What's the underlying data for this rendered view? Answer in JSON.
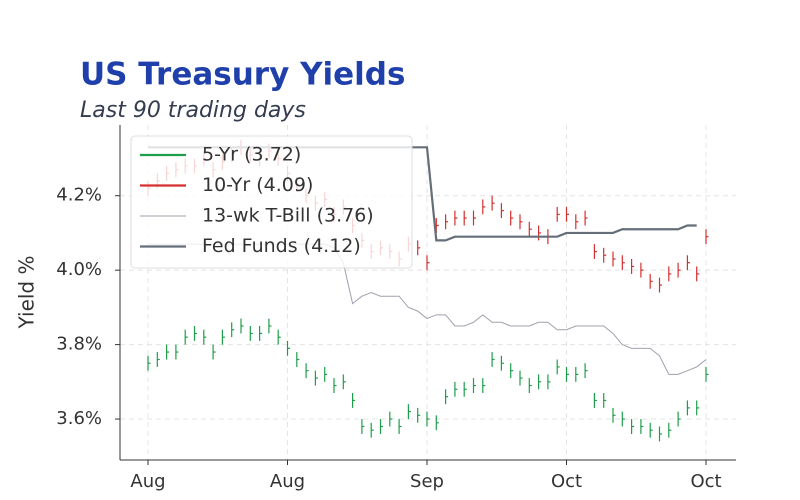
{
  "chart_data": {
    "type": "ohlc_line",
    "title": "US Treasury Yields",
    "subtitle": "Last 90 trading days",
    "ylabel": "Yield %",
    "categories": [
      "Aug",
      null,
      null,
      null,
      null,
      null,
      null,
      null,
      null,
      null,
      null,
      null,
      null,
      null,
      null,
      "Aug",
      null,
      null,
      null,
      null,
      null,
      null,
      null,
      null,
      null,
      null,
      null,
      null,
      null,
      null,
      "Sep",
      null,
      null,
      null,
      null,
      null,
      null,
      null,
      null,
      null,
      null,
      null,
      null,
      null,
      null,
      "Oct",
      null,
      null,
      null,
      null,
      null,
      null,
      null,
      null,
      null,
      null,
      null,
      null,
      null,
      null,
      "Oct"
    ],
    "ylim": [
      3.49,
      4.39
    ],
    "yticks": [
      {
        "value": 3.6,
        "label": "3.6%"
      },
      {
        "value": 3.8,
        "label": "3.8%"
      },
      {
        "value": 4.0,
        "label": "4.0%"
      },
      {
        "value": 4.2,
        "label": "4.2%"
      }
    ],
    "grid": true,
    "legend": "upper left",
    "series": [
      {
        "name": "5-Yr (3.72)",
        "kind": "ohlc",
        "color": "#1e9e4a",
        "values": [
          3.75,
          3.76,
          3.78,
          3.78,
          3.82,
          3.83,
          3.82,
          3.78,
          3.82,
          3.84,
          3.85,
          3.83,
          3.83,
          3.85,
          3.82,
          3.79,
          3.76,
          3.73,
          3.71,
          3.72,
          3.69,
          3.7,
          3.65,
          3.58,
          3.57,
          3.58,
          3.6,
          3.58,
          3.62,
          3.61,
          3.6,
          3.59,
          3.66,
          3.68,
          3.68,
          3.69,
          3.69,
          3.76,
          3.75,
          3.73,
          3.71,
          3.69,
          3.7,
          3.7,
          3.74,
          3.72,
          3.72,
          3.73,
          3.65,
          3.65,
          3.61,
          3.6,
          3.58,
          3.58,
          3.57,
          3.56,
          3.57,
          3.6,
          3.63,
          3.63,
          3.72
        ],
        "low": [
          3.73,
          3.74,
          3.76,
          3.76,
          3.8,
          3.81,
          3.8,
          3.76,
          3.8,
          3.82,
          3.83,
          3.81,
          3.81,
          3.83,
          3.8,
          3.77,
          3.74,
          3.71,
          3.69,
          3.7,
          3.67,
          3.68,
          3.63,
          3.56,
          3.55,
          3.56,
          3.58,
          3.56,
          3.6,
          3.59,
          3.58,
          3.57,
          3.64,
          3.66,
          3.66,
          3.67,
          3.67,
          3.74,
          3.73,
          3.71,
          3.69,
          3.67,
          3.68,
          3.68,
          3.72,
          3.7,
          3.7,
          3.71,
          3.63,
          3.63,
          3.59,
          3.58,
          3.56,
          3.56,
          3.55,
          3.54,
          3.55,
          3.58,
          3.61,
          3.61,
          3.7
        ],
        "high": [
          3.77,
          3.78,
          3.8,
          3.8,
          3.84,
          3.85,
          3.84,
          3.8,
          3.84,
          3.86,
          3.87,
          3.85,
          3.85,
          3.87,
          3.84,
          3.81,
          3.78,
          3.75,
          3.73,
          3.74,
          3.71,
          3.72,
          3.67,
          3.6,
          3.59,
          3.6,
          3.62,
          3.6,
          3.64,
          3.63,
          3.62,
          3.61,
          3.68,
          3.7,
          3.7,
          3.71,
          3.71,
          3.78,
          3.77,
          3.75,
          3.73,
          3.71,
          3.72,
          3.72,
          3.76,
          3.74,
          3.74,
          3.75,
          3.67,
          3.67,
          3.63,
          3.62,
          3.6,
          3.6,
          3.59,
          3.58,
          3.59,
          3.62,
          3.65,
          3.65,
          3.74
        ]
      },
      {
        "name": "10-Yr (4.09)",
        "kind": "ohlc",
        "color": "#d62f2f",
        "values": [
          4.22,
          4.24,
          4.26,
          4.27,
          4.28,
          4.28,
          4.3,
          4.27,
          4.29,
          4.31,
          4.33,
          4.31,
          4.3,
          4.32,
          4.3,
          4.26,
          4.23,
          4.2,
          4.18,
          4.19,
          4.15,
          4.17,
          4.12,
          4.08,
          4.05,
          4.06,
          4.05,
          4.03,
          4.07,
          4.06,
          4.02,
          4.12,
          4.13,
          4.14,
          4.14,
          4.14,
          4.17,
          4.18,
          4.16,
          4.14,
          4.13,
          4.11,
          4.1,
          4.09,
          4.15,
          4.15,
          4.13,
          4.14,
          4.05,
          4.04,
          4.03,
          4.02,
          4.01,
          4.0,
          3.97,
          3.96,
          3.99,
          4.0,
          4.02,
          3.99,
          4.09
        ],
        "low": [
          4.2,
          4.22,
          4.24,
          4.25,
          4.26,
          4.26,
          4.28,
          4.25,
          4.27,
          4.29,
          4.31,
          4.29,
          4.28,
          4.3,
          4.28,
          4.24,
          4.21,
          4.18,
          4.16,
          4.17,
          4.13,
          4.15,
          4.1,
          4.06,
          4.03,
          4.04,
          4.03,
          4.01,
          4.05,
          4.04,
          4.0,
          4.1,
          4.11,
          4.12,
          4.12,
          4.12,
          4.15,
          4.16,
          4.14,
          4.12,
          4.11,
          4.09,
          4.08,
          4.07,
          4.13,
          4.13,
          4.11,
          4.12,
          4.03,
          4.02,
          4.01,
          4.0,
          3.99,
          3.98,
          3.95,
          3.94,
          3.97,
          3.98,
          4.0,
          3.97,
          4.07
        ],
        "high": [
          4.24,
          4.26,
          4.28,
          4.29,
          4.3,
          4.3,
          4.32,
          4.29,
          4.31,
          4.33,
          4.35,
          4.33,
          4.32,
          4.34,
          4.32,
          4.28,
          4.25,
          4.22,
          4.2,
          4.21,
          4.17,
          4.19,
          4.14,
          4.1,
          4.07,
          4.08,
          4.07,
          4.05,
          4.09,
          4.08,
          4.04,
          4.14,
          4.15,
          4.16,
          4.16,
          4.16,
          4.19,
          4.2,
          4.18,
          4.16,
          4.15,
          4.13,
          4.12,
          4.11,
          4.17,
          4.17,
          4.15,
          4.16,
          4.07,
          4.06,
          4.05,
          4.04,
          4.03,
          4.02,
          3.99,
          3.98,
          4.01,
          4.02,
          4.04,
          4.01,
          4.11
        ]
      },
      {
        "name": "13-wk T-Bill (3.76)",
        "kind": "line",
        "color": "#9ea1ad",
        "values": [
          4.07,
          4.07,
          4.07,
          4.07,
          4.07,
          4.07,
          4.07,
          4.07,
          4.07,
          4.07,
          4.07,
          4.07,
          4.07,
          4.07,
          4.07,
          4.07,
          4.07,
          4.07,
          4.07,
          4.07,
          4.06,
          4.02,
          3.91,
          3.93,
          3.94,
          3.93,
          3.93,
          3.93,
          3.9,
          3.89,
          3.87,
          3.88,
          3.88,
          3.85,
          3.85,
          3.86,
          3.88,
          3.86,
          3.86,
          3.85,
          3.85,
          3.85,
          3.86,
          3.86,
          3.84,
          3.84,
          3.85,
          3.85,
          3.85,
          3.85,
          3.83,
          3.8,
          3.79,
          3.79,
          3.79,
          3.77,
          3.72,
          3.72,
          3.73,
          3.74,
          3.76
        ]
      },
      {
        "name": "Fed Funds (4.12)",
        "kind": "line",
        "color": "#666e7a",
        "values": [
          4.33,
          4.33,
          4.33,
          4.33,
          4.33,
          4.33,
          4.33,
          4.33,
          4.33,
          4.33,
          4.33,
          4.33,
          4.33,
          4.33,
          4.33,
          4.33,
          4.33,
          4.33,
          4.33,
          4.33,
          4.33,
          4.33,
          4.33,
          4.33,
          4.33,
          4.33,
          4.33,
          4.33,
          4.33,
          4.33,
          4.33,
          4.08,
          4.08,
          4.09,
          4.09,
          4.09,
          4.09,
          4.09,
          4.09,
          4.09,
          4.09,
          4.09,
          4.09,
          4.09,
          4.09,
          4.1,
          4.1,
          4.1,
          4.1,
          4.1,
          4.1,
          4.11,
          4.11,
          4.11,
          4.11,
          4.11,
          4.11,
          4.11,
          4.12,
          4.12,
          null
        ]
      }
    ]
  }
}
